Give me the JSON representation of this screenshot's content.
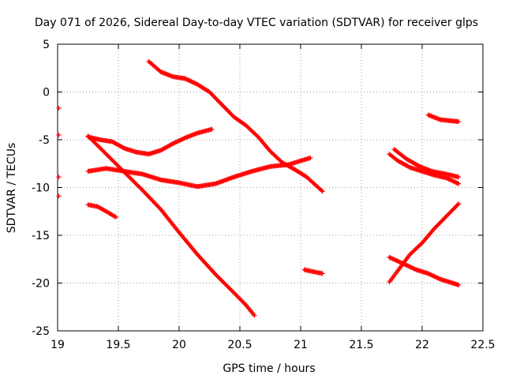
{
  "chart_data": {
    "type": "scatter",
    "title": "Day 071 of 2026, Sidereal Day-to-day VTEC variation (SDTVAR) for receiver glps",
    "xlabel": "GPS time / hours",
    "ylabel": "SDTVAR / TECUs",
    "xlim": [
      19,
      22.5
    ],
    "ylim": [
      -25,
      5
    ],
    "xticks": [
      "19",
      "19.5",
      "20",
      "20.5",
      "21",
      "21.5",
      "22",
      "22.5"
    ],
    "yticks": [
      "5",
      "0",
      "-5",
      "-10",
      "-15",
      "-20",
      "-25"
    ],
    "grid": true,
    "marker": "+",
    "color": "#ff0000",
    "series": [
      {
        "name": "s1",
        "points": [
          [
            19.01,
            -1.7
          ]
        ]
      },
      {
        "name": "s2",
        "points": [
          [
            19.01,
            -4.5
          ]
        ]
      },
      {
        "name": "s3",
        "points": [
          [
            19.01,
            -8.9
          ]
        ]
      },
      {
        "name": "s4",
        "points": [
          [
            19.01,
            -10.9
          ]
        ]
      },
      {
        "name": "s5",
        "points": [
          [
            19.25,
            -11.8
          ],
          [
            19.33,
            -12.0
          ],
          [
            19.4,
            -12.5
          ],
          [
            19.48,
            -13.1
          ]
        ]
      },
      {
        "name": "s6",
        "points": [
          [
            19.25,
            -4.7
          ],
          [
            19.35,
            -5.0
          ],
          [
            19.45,
            -5.2
          ],
          [
            19.55,
            -5.9
          ],
          [
            19.65,
            -6.3
          ],
          [
            19.75,
            -6.5
          ],
          [
            19.85,
            -6.1
          ],
          [
            19.95,
            -5.4
          ],
          [
            20.05,
            -4.8
          ],
          [
            20.15,
            -4.3
          ],
          [
            20.27,
            -3.9
          ]
        ]
      },
      {
        "name": "s7",
        "points": [
          [
            19.25,
            -8.3
          ],
          [
            19.4,
            -8.0
          ],
          [
            19.55,
            -8.3
          ],
          [
            19.7,
            -8.6
          ],
          [
            19.85,
            -9.2
          ],
          [
            20.0,
            -9.5
          ],
          [
            20.15,
            -9.9
          ],
          [
            20.3,
            -9.6
          ],
          [
            20.45,
            -8.9
          ],
          [
            20.6,
            -8.3
          ],
          [
            20.75,
            -7.8
          ],
          [
            20.9,
            -7.6
          ],
          [
            21.08,
            -6.9
          ]
        ]
      },
      {
        "name": "s8",
        "points": [
          [
            19.25,
            -4.6
          ],
          [
            19.4,
            -6.5
          ],
          [
            19.55,
            -8.4
          ],
          [
            19.7,
            -10.3
          ],
          [
            19.85,
            -12.3
          ],
          [
            20.0,
            -14.7
          ],
          [
            20.15,
            -17.0
          ],
          [
            20.3,
            -19.1
          ],
          [
            20.45,
            -21.0
          ],
          [
            20.55,
            -22.3
          ],
          [
            20.62,
            -23.4
          ]
        ]
      },
      {
        "name": "s9",
        "points": [
          [
            19.75,
            3.2
          ],
          [
            19.85,
            2.1
          ],
          [
            19.95,
            1.6
          ],
          [
            20.05,
            1.4
          ],
          [
            20.15,
            0.8
          ],
          [
            20.25,
            0.0
          ],
          [
            20.35,
            -1.3
          ],
          [
            20.45,
            -2.6
          ],
          [
            20.55,
            -3.5
          ],
          [
            20.65,
            -4.7
          ],
          [
            20.75,
            -6.2
          ],
          [
            20.85,
            -7.4
          ],
          [
            20.95,
            -8.1
          ],
          [
            21.05,
            -8.9
          ],
          [
            21.18,
            -10.4
          ]
        ]
      },
      {
        "name": "s10",
        "points": [
          [
            21.03,
            -18.6
          ],
          [
            21.1,
            -18.8
          ],
          [
            21.18,
            -19.0
          ]
        ]
      },
      {
        "name": "s11",
        "points": [
          [
            21.73,
            -6.5
          ],
          [
            21.8,
            -7.2
          ],
          [
            21.9,
            -7.9
          ],
          [
            22.0,
            -8.3
          ],
          [
            22.1,
            -8.7
          ],
          [
            22.2,
            -9.0
          ],
          [
            22.3,
            -9.6
          ]
        ]
      },
      {
        "name": "s12",
        "points": [
          [
            21.77,
            -6.0
          ],
          [
            21.87,
            -7.0
          ],
          [
            21.98,
            -7.8
          ],
          [
            22.08,
            -8.3
          ],
          [
            22.2,
            -8.6
          ],
          [
            22.3,
            -8.9
          ]
        ]
      },
      {
        "name": "s13",
        "points": [
          [
            22.05,
            -2.4
          ],
          [
            22.15,
            -2.9
          ],
          [
            22.3,
            -3.1
          ]
        ]
      },
      {
        "name": "s14",
        "points": [
          [
            21.73,
            -17.3
          ],
          [
            21.85,
            -18.0
          ],
          [
            21.95,
            -18.6
          ],
          [
            22.05,
            -19.0
          ],
          [
            22.15,
            -19.6
          ],
          [
            22.3,
            -20.2
          ]
        ]
      },
      {
        "name": "s15",
        "points": [
          [
            21.73,
            -19.9
          ],
          [
            21.8,
            -18.7
          ],
          [
            21.9,
            -17.0
          ],
          [
            22.0,
            -15.8
          ],
          [
            22.1,
            -14.3
          ],
          [
            22.2,
            -13.0
          ],
          [
            22.3,
            -11.7
          ]
        ]
      }
    ]
  }
}
